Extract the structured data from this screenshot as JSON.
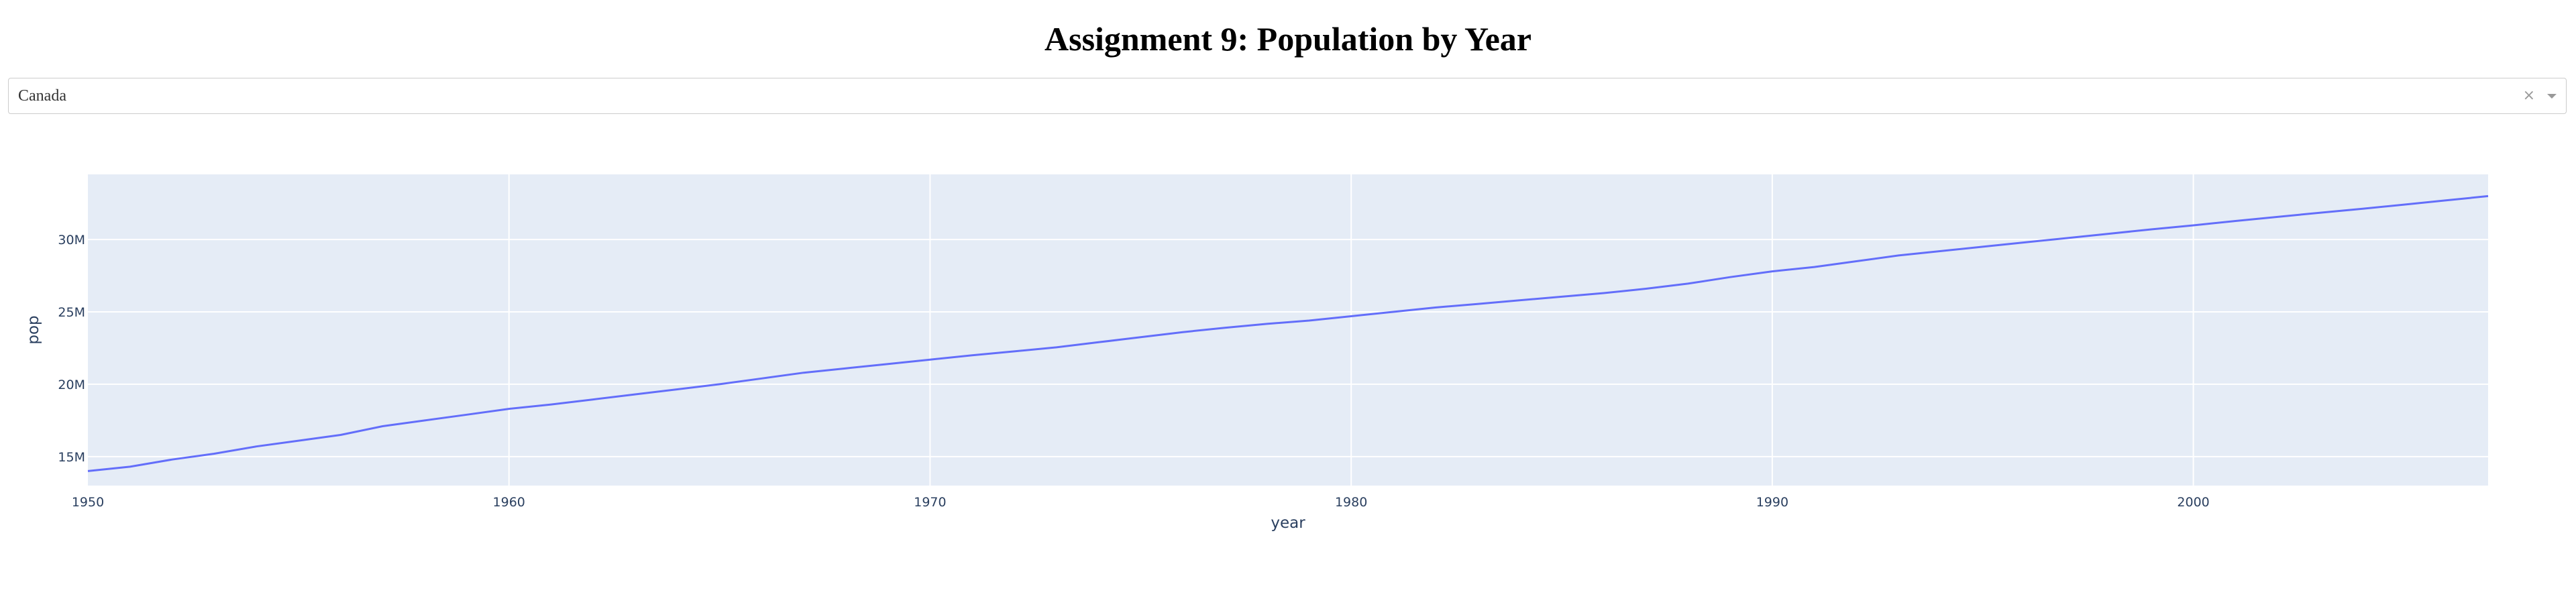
{
  "page_title": "Assignment 9: Population by Year",
  "dropdown": {
    "selected": "Canada",
    "clear_symbol": "×"
  },
  "colors": {
    "plot_bg": "#e5ecf6",
    "line": "#636efa",
    "grid": "#ffffff",
    "axis_text": "#2a3f5f"
  },
  "chart_data": {
    "type": "line",
    "xlabel": "year",
    "ylabel": "pop",
    "xlim": [
      1950,
      2007
    ],
    "ylim": [
      13,
      34.5
    ],
    "y_unit_multiplier": 1000000,
    "x_ticks": [
      1950,
      1960,
      1970,
      1980,
      1990,
      2000
    ],
    "y_ticks": [
      15,
      20,
      25,
      30
    ],
    "y_tick_labels": [
      "15M",
      "20M",
      "25M",
      "30M"
    ],
    "grid": true,
    "legend": "none",
    "series": [
      {
        "x": [
          1950,
          1951,
          1952,
          1953,
          1954,
          1955,
          1956,
          1957,
          1958,
          1959,
          1960,
          1961,
          1962,
          1963,
          1964,
          1965,
          1966,
          1967,
          1968,
          1969,
          1970,
          1971,
          1972,
          1973,
          1974,
          1975,
          1976,
          1977,
          1978,
          1979,
          1980,
          1981,
          1982,
          1983,
          1984,
          1985,
          1986,
          1987,
          1988,
          1989,
          1990,
          1991,
          1992,
          1993,
          1994,
          1995,
          1996,
          1997,
          1998,
          1999,
          2000,
          2001,
          2002,
          2003,
          2004,
          2005,
          2006,
          2007
        ],
        "values": [
          14.0,
          14.3,
          14.8,
          15.2,
          15.7,
          16.1,
          16.5,
          17.1,
          17.5,
          17.9,
          18.3,
          18.6,
          18.95,
          19.3,
          19.65,
          20.0,
          20.4,
          20.8,
          21.1,
          21.4,
          21.7,
          22.0,
          22.27,
          22.55,
          22.9,
          23.25,
          23.6,
          23.9,
          24.17,
          24.4,
          24.7,
          25.0,
          25.3,
          25.55,
          25.8,
          26.05,
          26.3,
          26.6,
          26.95,
          27.4,
          27.8,
          28.1,
          28.5,
          28.9,
          29.2,
          29.5,
          29.8,
          30.1,
          30.4,
          30.7,
          30.98,
          31.28,
          31.56,
          31.85,
          32.12,
          32.41,
          32.7,
          33.0
        ]
      }
    ]
  }
}
